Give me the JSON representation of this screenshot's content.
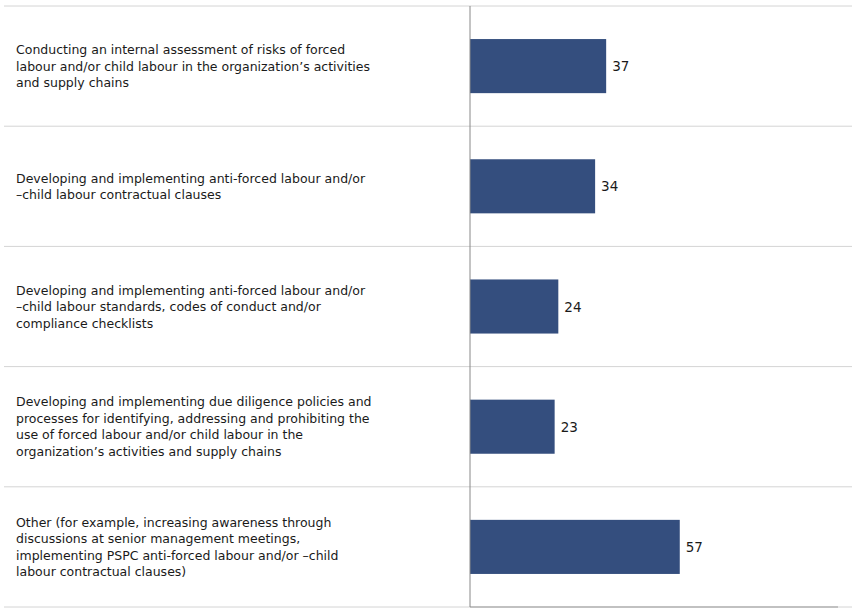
{
  "chart_data": {
    "type": "bar",
    "orientation": "horizontal",
    "categories": [
      "Conducting an internal assessment of risks of forced\nlabour and/or child labour in the organization’s activities\nand supply chains",
      "Developing and implementing anti-forced labour and/or\n–child labour contractual clauses",
      "Developing and implementing anti-forced labour and/or\n–child labour standards, codes of conduct and/or\ncompliance checklists",
      "Developing and implementing due diligence policies and\nprocesses for identifying, addressing and prohibiting the\nuse of forced labour and/or child labour in the\norganization’s activities and supply chains",
      "Other (for example, increasing awareness through\ndiscussions at senior management meetings,\nimplementing PSPC anti-forced labour and/or –child\nlabour contractual clauses)"
    ],
    "values": [
      37,
      34,
      24,
      23,
      57
    ],
    "color": "#344e7e",
    "xlim": [
      0,
      100
    ],
    "data_labels": true,
    "tick_labels": false
  }
}
